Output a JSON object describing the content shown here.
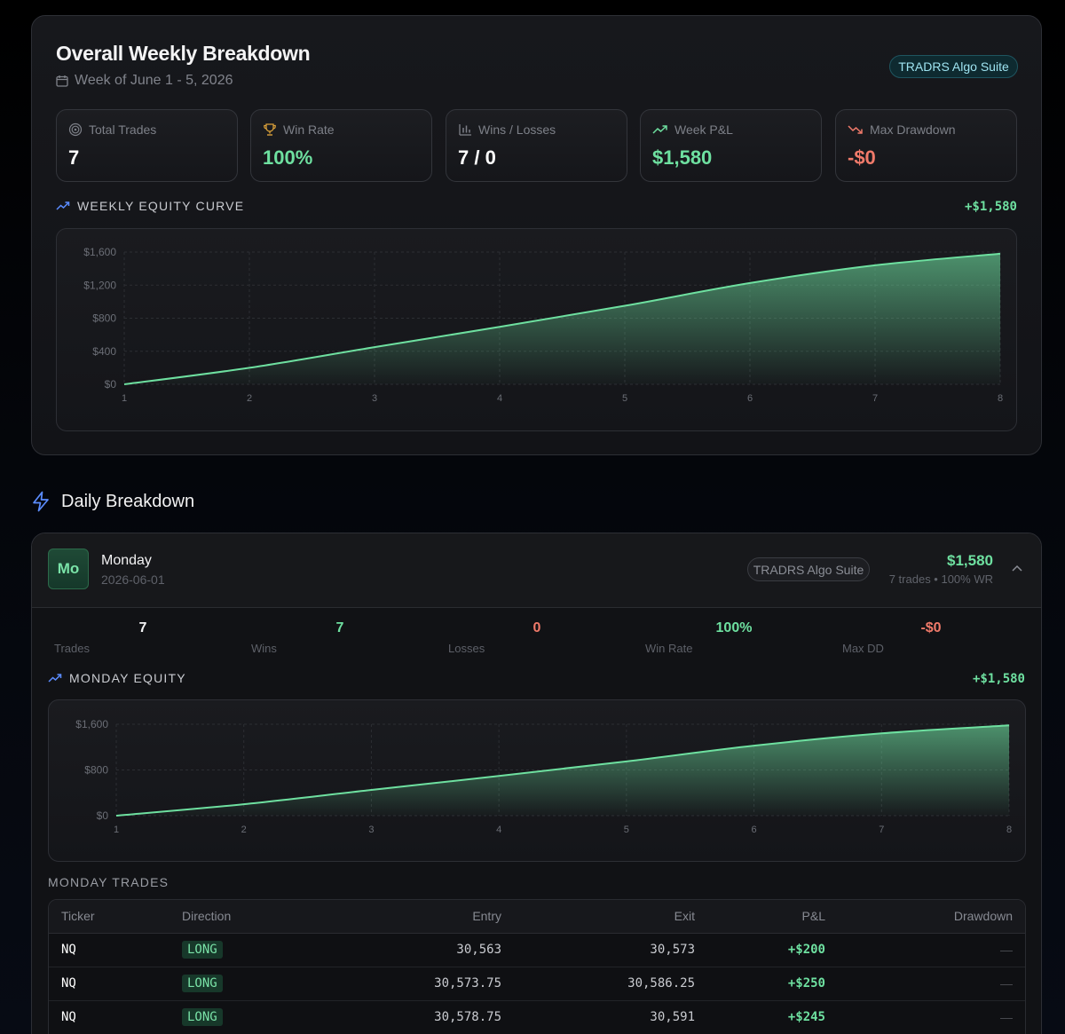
{
  "weekly": {
    "title": "Overall Weekly Breakdown",
    "week_label": "Week of June 1 - 5, 2026",
    "badge": "TRADRS Algo Suite",
    "stats": [
      {
        "label": "Total Trades",
        "value": "7",
        "icon": "target-icon",
        "color": "#ffffff"
      },
      {
        "label": "Win Rate",
        "value": "100%",
        "icon": "trophy-icon",
        "color": "#6ee0a0"
      },
      {
        "label": "Wins / Losses",
        "value": "7 / 0",
        "icon": "bar-chart-icon",
        "color": "#ffffff"
      },
      {
        "label": "Week P&L",
        "value": "$1,580",
        "icon": "trending-up-icon",
        "color": "#6ee0a0"
      },
      {
        "label": "Max Drawdown",
        "value": "-$0",
        "icon": "trending-down-icon",
        "color": "#f07a6a"
      }
    ],
    "equity_title": "WEEKLY EQUITY CURVE",
    "equity_total": "+$1,580"
  },
  "daily_title": "Daily Breakdown",
  "monday": {
    "abbr": "Mo",
    "name": "Monday",
    "date": "2026-06-01",
    "badge": "TRADRS Algo Suite",
    "pnl": "$1,580",
    "summary": "7 trades • 100% WR",
    "stats": [
      {
        "value": "7",
        "label": "Trades",
        "color": "#f2f2f3"
      },
      {
        "value": "7",
        "label": "Wins",
        "color": "#6ee0a0"
      },
      {
        "value": "0",
        "label": "Losses",
        "color": "#f07a6a"
      },
      {
        "value": "100%",
        "label": "Win Rate",
        "color": "#6ee0a0"
      },
      {
        "value": "-$0",
        "label": "Max DD",
        "color": "#f07a6a"
      }
    ],
    "equity_title": "MONDAY EQUITY",
    "equity_total": "+$1,580",
    "trades_title": "MONDAY TRADES",
    "columns": [
      "Ticker",
      "Direction",
      "Entry",
      "Exit",
      "P&L",
      "Drawdown"
    ],
    "trades": [
      {
        "ticker": "NQ",
        "direction": "LONG",
        "entry": "30,563",
        "exit": "30,573",
        "pnl": "+$200",
        "drawdown": "—"
      },
      {
        "ticker": "NQ",
        "direction": "LONG",
        "entry": "30,573.75",
        "exit": "30,586.25",
        "pnl": "+$250",
        "drawdown": "—"
      },
      {
        "ticker": "NQ",
        "direction": "LONG",
        "entry": "30,578.75",
        "exit": "30,591",
        "pnl": "+$245",
        "drawdown": "—"
      }
    ]
  },
  "chart_data": [
    {
      "type": "area",
      "title": "WEEKLY EQUITY CURVE",
      "x": [
        1,
        2,
        3,
        4,
        5,
        6,
        7,
        8
      ],
      "y": [
        0,
        200,
        450,
        695,
        950,
        1225,
        1440,
        1580
      ],
      "ylim": [
        0,
        1600
      ],
      "yticks": [
        0,
        400,
        800,
        1200,
        1600
      ],
      "ytick_labels": [
        "$0",
        "$400",
        "$800",
        "$1,200",
        "$1,600"
      ],
      "grid": true,
      "color": "#6ee0a0"
    },
    {
      "type": "area",
      "title": "MONDAY EQUITY",
      "x": [
        1,
        2,
        3,
        4,
        5,
        6,
        7,
        8
      ],
      "y": [
        0,
        200,
        450,
        695,
        950,
        1225,
        1440,
        1580
      ],
      "ylim": [
        0,
        1600
      ],
      "yticks": [
        0,
        800,
        1600
      ],
      "ytick_labels": [
        "$0",
        "$800",
        "$1,600"
      ],
      "grid": true,
      "color": "#6ee0a0"
    }
  ]
}
